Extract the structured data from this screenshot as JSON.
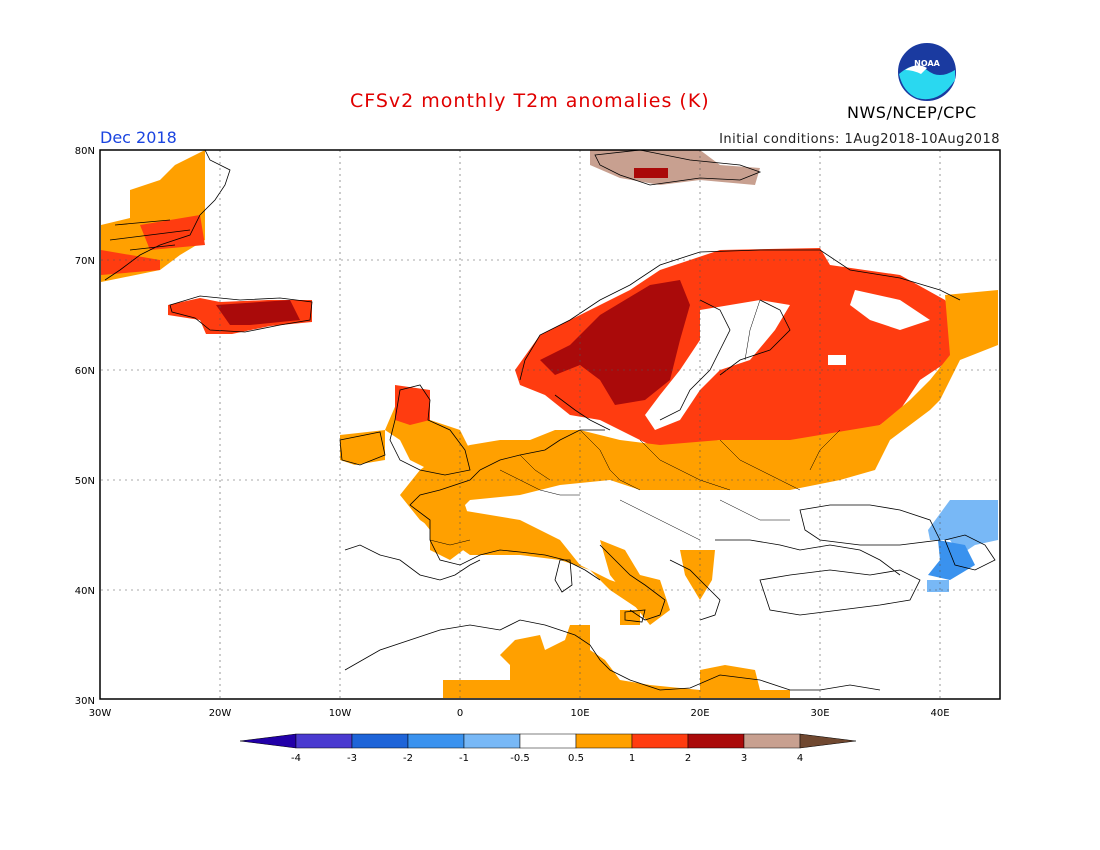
{
  "header": {
    "title": "CFSv2 monthly T2m anomalies (K)",
    "title_color": "#e00000",
    "month": "Dec 2018",
    "month_color": "#1a44e0",
    "initial_conditions": "Initial conditions: 1Aug2018-10Aug2018",
    "agency": "NWS/NCEP/CPC",
    "logo_text": "NOAA"
  },
  "map": {
    "lat_labels": [
      "80N",
      "70N",
      "60N",
      "50N",
      "40N",
      "30N"
    ],
    "lon_labels": [
      "30W",
      "20W",
      "10W",
      "0",
      "10E",
      "20E",
      "30E",
      "40E"
    ],
    "lon_range": [
      -30,
      45
    ],
    "lat_range": [
      30,
      80
    ],
    "grid": "dotted"
  },
  "colorbar": {
    "labels": [
      "-4",
      "-3",
      "-2",
      "-1",
      "-0.5",
      "0.5",
      "1",
      "2",
      "3",
      "4"
    ],
    "colors": [
      "#2200a8",
      "#4a3ad0",
      "#1e64d8",
      "#3a92ee",
      "#78b8f6",
      "#ffffff",
      "#ffa000",
      "#ff3c10",
      "#aa0a0a",
      "#c8a090",
      "#704830"
    ]
  }
}
